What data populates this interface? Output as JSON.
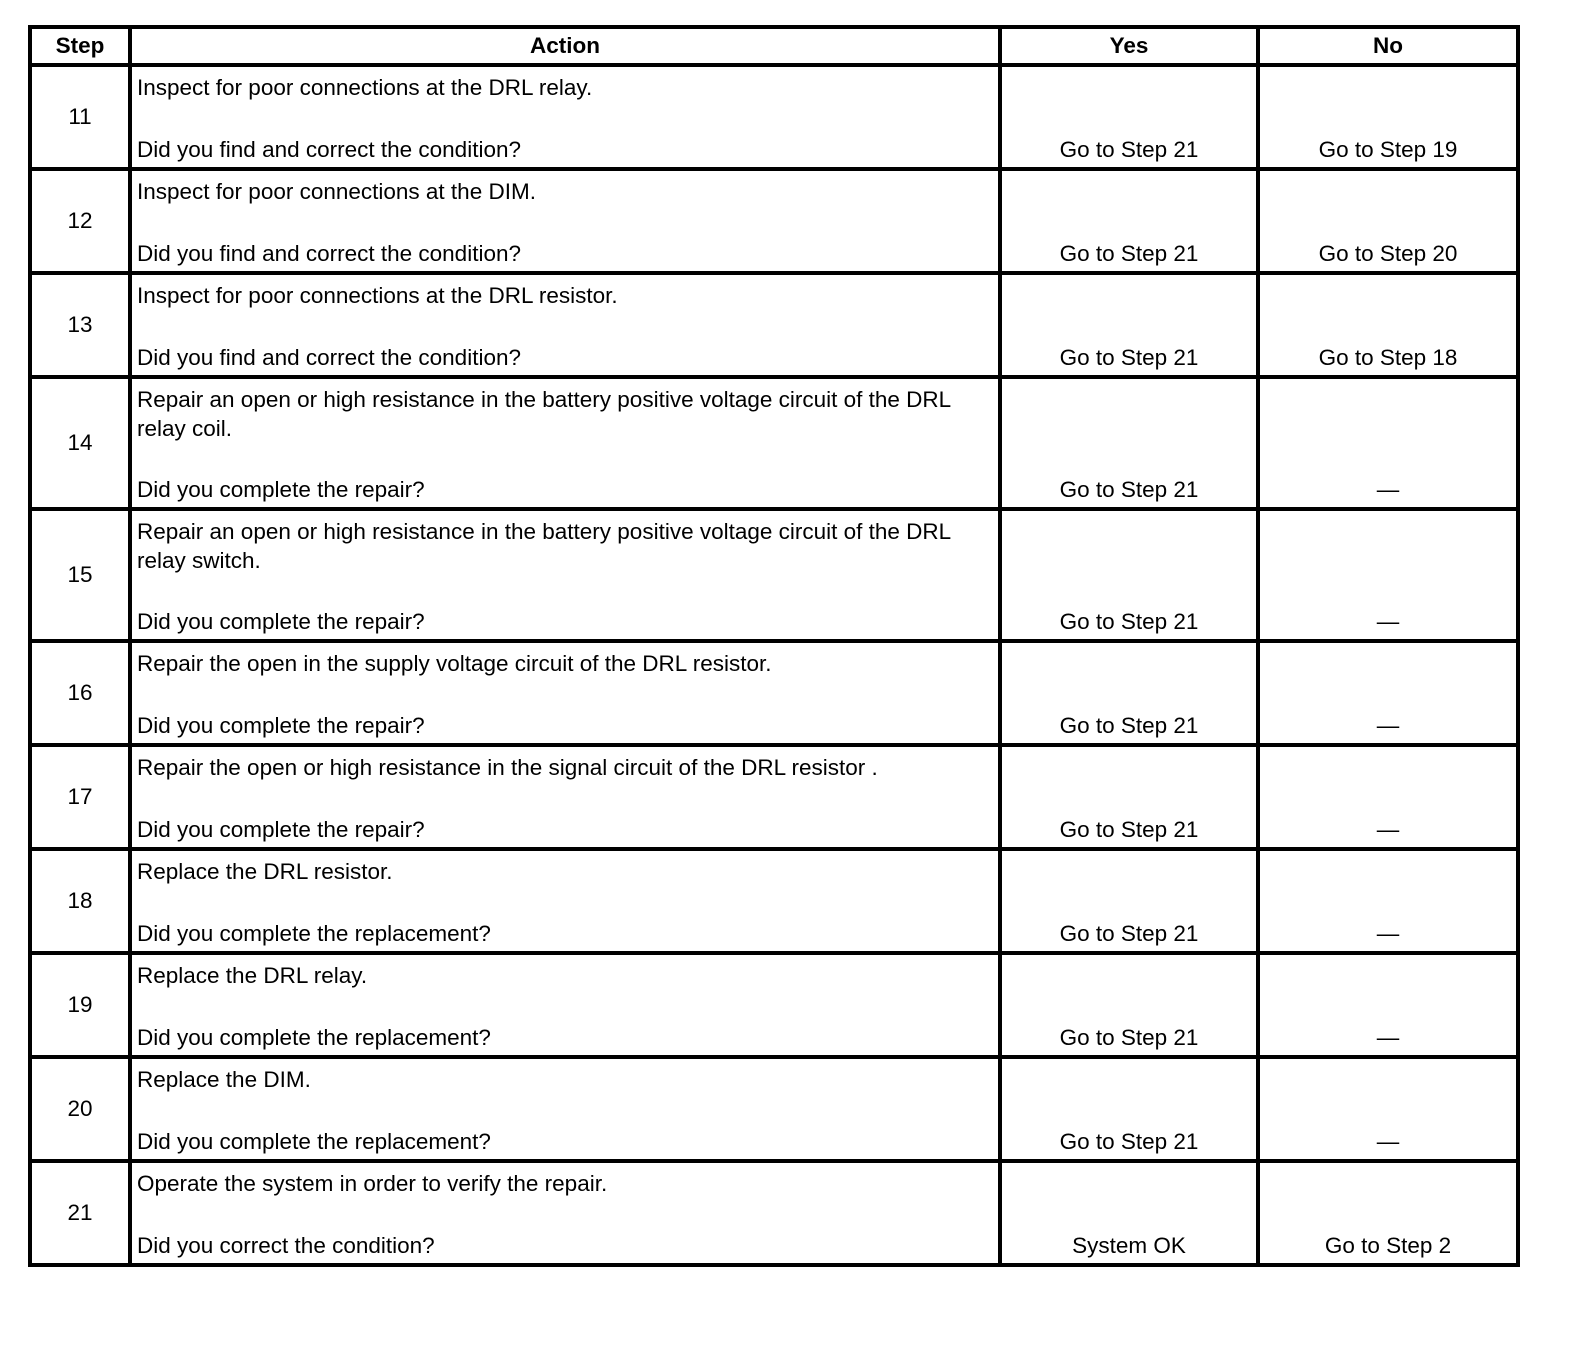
{
  "table": {
    "headers": {
      "step": "Step",
      "action": "Action",
      "yes": "Yes",
      "no": "No"
    },
    "rows": [
      {
        "step": "11",
        "action": "Inspect for poor connections at the DRL relay.",
        "question": "Did you find and correct the condition?",
        "yes": "Go to Step 21",
        "no": "Go to Step 19"
      },
      {
        "step": "12",
        "action": "Inspect for poor connections at the DIM.",
        "question": "Did you find and correct the condition?",
        "yes": "Go to Step 21",
        "no": "Go to Step 20"
      },
      {
        "step": "13",
        "action": "Inspect for poor connections at the DRL resistor.",
        "question": "Did you find and correct the condition?",
        "yes": "Go to Step 21",
        "no": "Go to Step 18"
      },
      {
        "step": "14",
        "action": "Repair an open or high resistance in the battery positive voltage circuit of the DRL relay coil.",
        "question": "Did you complete the repair?",
        "yes": "Go to Step 21",
        "no": "—"
      },
      {
        "step": "15",
        "action": "Repair an open or high resistance in the battery positive voltage circuit of the DRL relay switch.",
        "question": "Did you complete the repair?",
        "yes": "Go to Step 21",
        "no": "—"
      },
      {
        "step": "16",
        "action": "Repair the open in the supply voltage circuit of the DRL resistor.",
        "question": "Did you complete the repair?",
        "yes": "Go to Step 21",
        "no": "—"
      },
      {
        "step": "17",
        "action": "Repair the open or high resistance in the signal circuit of the DRL resistor .",
        "question": "Did you complete the repair?",
        "yes": "Go to Step 21",
        "no": "—"
      },
      {
        "step": "18",
        "action": "Replace the DRL resistor.",
        "question": "Did you complete the replacement?",
        "yes": "Go to Step 21",
        "no": "—"
      },
      {
        "step": "19",
        "action": "Replace the DRL relay.",
        "question": "Did you complete the replacement?",
        "yes": "Go to Step 21",
        "no": "—"
      },
      {
        "step": "20",
        "action": "Replace the DIM.",
        "question": "Did you complete the replacement?",
        "yes": "Go to Step 21",
        "no": "—"
      },
      {
        "step": "21",
        "action": "Operate the system in order to verify the repair.",
        "question": "Did you correct the condition?",
        "yes": "System OK",
        "no": "Go to Step 2"
      }
    ]
  }
}
